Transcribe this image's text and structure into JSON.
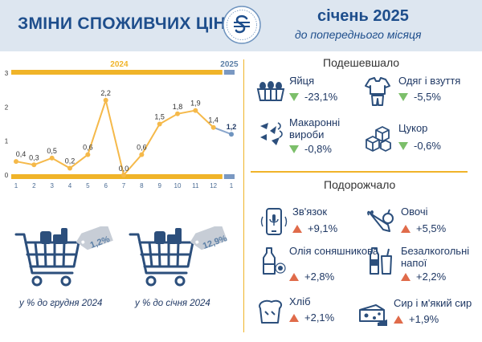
{
  "header": {
    "title": "ЗМІНИ СПОЖИВЧИХ ЦІН",
    "month": "січень 2025",
    "subtitle": "до попереднього місяця"
  },
  "colors": {
    "header_bg": "#dde6f0",
    "brand": "#1e4e8c",
    "accent": "#f0b429",
    "line": "#f5b94a",
    "decrease": "#7cbf6a",
    "increase": "#e06b4a"
  },
  "chart_data": {
    "type": "line",
    "year_labels": [
      "2024",
      "2025"
    ],
    "y_ticks": [
      "0",
      "1",
      "2",
      "3"
    ],
    "ylim": [
      0,
      3
    ],
    "x_ticks": [
      "1",
      "2",
      "3",
      "4",
      "5",
      "6",
      "7",
      "8",
      "9",
      "10",
      "11",
      "12",
      "1"
    ],
    "series": [
      {
        "values": [
          0.4,
          0.3,
          0.5,
          0.2,
          0.6,
          2.2,
          0.0,
          0.6,
          1.5,
          1.8,
          1.9,
          1.4,
          1.2
        ]
      }
    ],
    "data_labels": [
      "0,4",
      "0,3",
      "0,5",
      "0,2",
      "0,6",
      "2,2",
      "0,0",
      "0,6",
      "1,5",
      "1,8",
      "1,9",
      "1,4",
      "1,2"
    ]
  },
  "carts": [
    {
      "value": "1,2%",
      "caption": "у % до грудня 2024"
    },
    {
      "value": "12,9%",
      "caption": "у % до січня 2024"
    }
  ],
  "cheaper": {
    "title": "Подешевшало",
    "items": [
      {
        "name": "Яйця",
        "value": "-23,1%",
        "icon": "eggs-icon"
      },
      {
        "name": "Одяг і взуття",
        "value": "-5,5%",
        "icon": "clothes-icon"
      },
      {
        "name": "Макаронні вироби",
        "value": "-0,8%",
        "icon": "pasta-icon"
      },
      {
        "name": "Цукор",
        "value": "-0,6%",
        "icon": "sugar-icon"
      }
    ]
  },
  "pricier": {
    "title": "Подорожчало",
    "items": [
      {
        "name": "Зв'язок",
        "value": "+9,1%",
        "icon": "phone-icon"
      },
      {
        "name": "Овочі",
        "value": "+5,5%",
        "icon": "vegetables-icon"
      },
      {
        "name": "Олія соняшникова",
        "value": "+2,8%",
        "icon": "oil-icon"
      },
      {
        "name": "Безалкогольні напої",
        "value": "+2,2%",
        "icon": "drinks-icon"
      },
      {
        "name": "Хліб",
        "value": "+2,1%",
        "icon": "bread-icon"
      },
      {
        "name": "Сир і м'який сир",
        "value": "+1,9%",
        "icon": "cheese-icon"
      }
    ]
  }
}
